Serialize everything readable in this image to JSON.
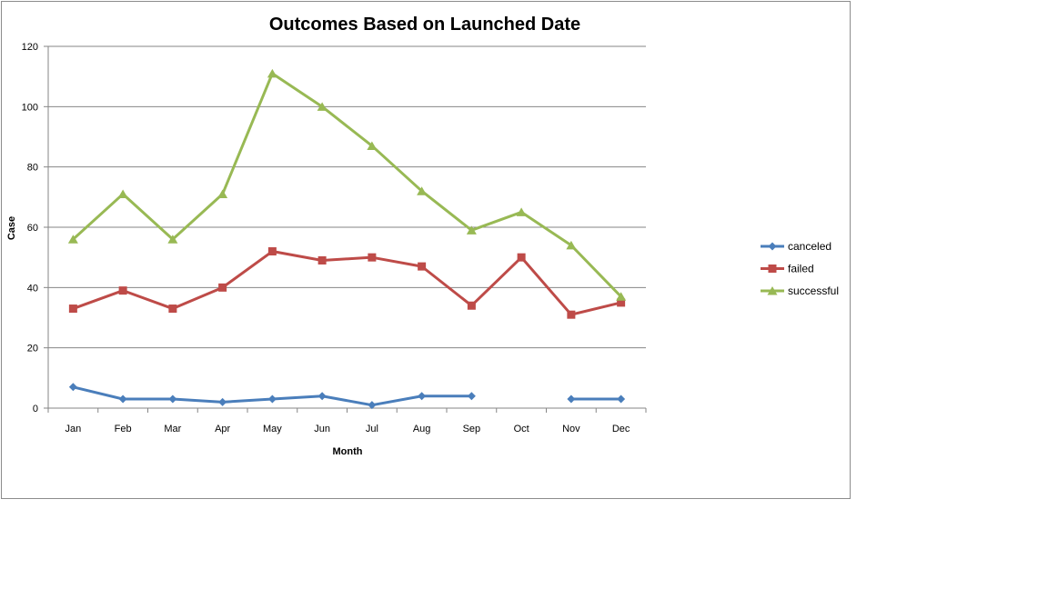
{
  "chart_data": {
    "type": "line",
    "title": "Outcomes Based on Launched Date",
    "xlabel": "Month",
    "ylabel": "Case",
    "categories": [
      "Jan",
      "Feb",
      "Mar",
      "Apr",
      "May",
      "Jun",
      "Jul",
      "Aug",
      "Sep",
      "Oct",
      "Nov",
      "Dec"
    ],
    "ylim": [
      0,
      120
    ],
    "yticks": [
      0,
      20,
      40,
      60,
      80,
      100,
      120
    ],
    "grid": true,
    "legend_position": "right",
    "series": [
      {
        "name": "canceled",
        "color": "#4a7ebb",
        "marker": "diamond",
        "values": [
          7,
          3,
          3,
          2,
          3,
          4,
          1,
          4,
          4,
          null,
          3,
          3
        ]
      },
      {
        "name": "failed",
        "color": "#be4b48",
        "marker": "square",
        "values": [
          33,
          39,
          33,
          40,
          52,
          49,
          50,
          47,
          34,
          50,
          31,
          35
        ]
      },
      {
        "name": "successful",
        "color": "#98b954",
        "marker": "triangle",
        "values": [
          56,
          71,
          56,
          71,
          111,
          100,
          87,
          72,
          59,
          65,
          54,
          37
        ]
      }
    ]
  }
}
